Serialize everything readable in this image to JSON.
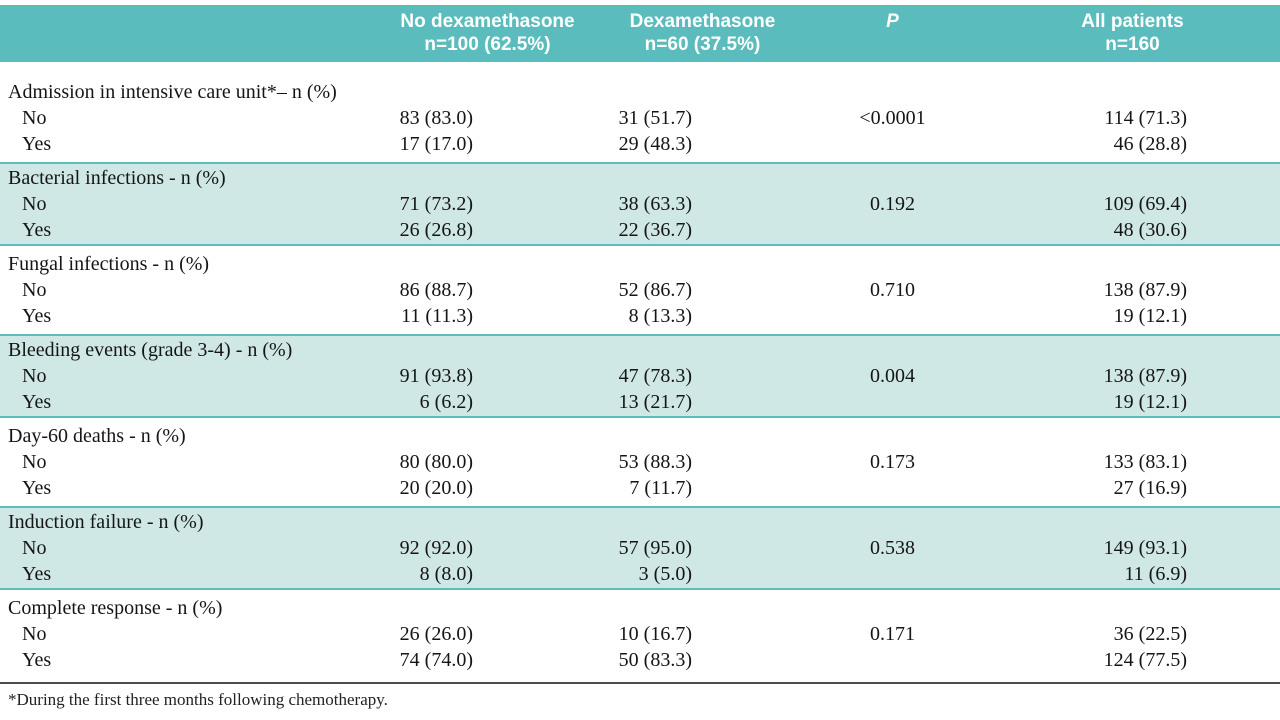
{
  "table": {
    "header": {
      "no_dex": {
        "line1": "No dexamethasone",
        "line2": "n=100 (62.5%)"
      },
      "dex": {
        "line1": "Dexamethasone",
        "line2": "n=60 (37.5%)"
      },
      "p": {
        "line1": "P"
      },
      "all": {
        "line1": "All patients",
        "line2": "n=160"
      }
    },
    "sections": [
      {
        "label": "Admission in intensive care unit*– n (%)",
        "shaded": false,
        "rows": [
          {
            "label": "No",
            "no_dex": "83 (83.0)",
            "dex": "31 (51.7)",
            "p": "<0.0001",
            "all": "114 (71.3)"
          },
          {
            "label": "Yes",
            "no_dex": "17 (17.0)",
            "dex": "29 (48.3)",
            "p": "",
            "all": "46 (28.8)"
          }
        ]
      },
      {
        "label": "Bacterial infections - n (%)",
        "shaded": true,
        "rows": [
          {
            "label": "No",
            "no_dex": "71 (73.2)",
            "dex": "38 (63.3)",
            "p": "0.192",
            "all": "109 (69.4)"
          },
          {
            "label": "Yes",
            "no_dex": "26 (26.8)",
            "dex": "22 (36.7)",
            "p": "",
            "all": "48 (30.6)"
          }
        ]
      },
      {
        "label": "Fungal infections - n (%)",
        "shaded": false,
        "rows": [
          {
            "label": "No",
            "no_dex": "86 (88.7)",
            "dex": "52 (86.7)",
            "p": "0.710",
            "all": "138 (87.9)"
          },
          {
            "label": "Yes",
            "no_dex": "11 (11.3)",
            "dex": "8 (13.3)",
            "p": "",
            "all": "19 (12.1)"
          }
        ]
      },
      {
        "label": "Bleeding events (grade 3-4) - n (%)",
        "shaded": true,
        "rows": [
          {
            "label": "No",
            "no_dex": "91 (93.8)",
            "dex": "47 (78.3)",
            "p": "0.004",
            "all": "138 (87.9)"
          },
          {
            "label": "Yes",
            "no_dex": "6 (6.2)",
            "dex": "13 (21.7)",
            "p": "",
            "all": "19 (12.1)"
          }
        ]
      },
      {
        "label": "Day-60 deaths - n (%)",
        "shaded": false,
        "rows": [
          {
            "label": "No",
            "no_dex": "80 (80.0)",
            "dex": "53 (88.3)",
            "p": "0.173",
            "all": "133 (83.1)"
          },
          {
            "label": "Yes",
            "no_dex": "20 (20.0)",
            "dex": "7 (11.7)",
            "p": "",
            "all": "27 (16.9)"
          }
        ]
      },
      {
        "label": "Induction failure - n (%)",
        "shaded": true,
        "rows": [
          {
            "label": "No",
            "no_dex": "92 (92.0)",
            "dex": "57 (95.0)",
            "p": "0.538",
            "all": "149 (93.1)"
          },
          {
            "label": "Yes",
            "no_dex": "8 (8.0)",
            "dex": "3 (5.0)",
            "p": "",
            "all": "11 (6.9)"
          }
        ]
      },
      {
        "label": "Complete response - n (%)",
        "shaded": false,
        "rows": [
          {
            "label": "No",
            "no_dex": "26 (26.0)",
            "dex": "10 (16.7)",
            "p": "0.171",
            "all": "36 (22.5)"
          },
          {
            "label": "Yes",
            "no_dex": "74 (74.0)",
            "dex": "50 (83.3)",
            "p": "",
            "all": "124 (77.5)"
          }
        ]
      }
    ],
    "footnote": "*During the first three months following chemotherapy."
  },
  "colors": {
    "header_bg": "#5bbcbd",
    "band_bg": "#cfe8e6",
    "rule": "#5bbcbd",
    "footnote_rule": "#4d4d4d"
  }
}
